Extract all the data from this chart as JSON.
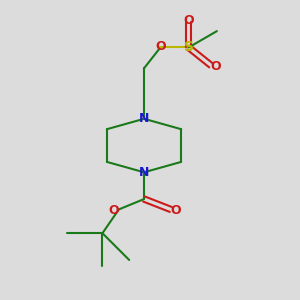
{
  "background_color": "#dcdcdc",
  "bond_color": "#1a7a1a",
  "N_color": "#1a1acc",
  "O_color": "#cc1a1a",
  "S_color": "#b8b800",
  "line_width": 1.5,
  "figsize": [
    3.0,
    3.0
  ],
  "dpi": 100,
  "xlim": [
    0,
    10
  ],
  "ylim": [
    0,
    10
  ]
}
